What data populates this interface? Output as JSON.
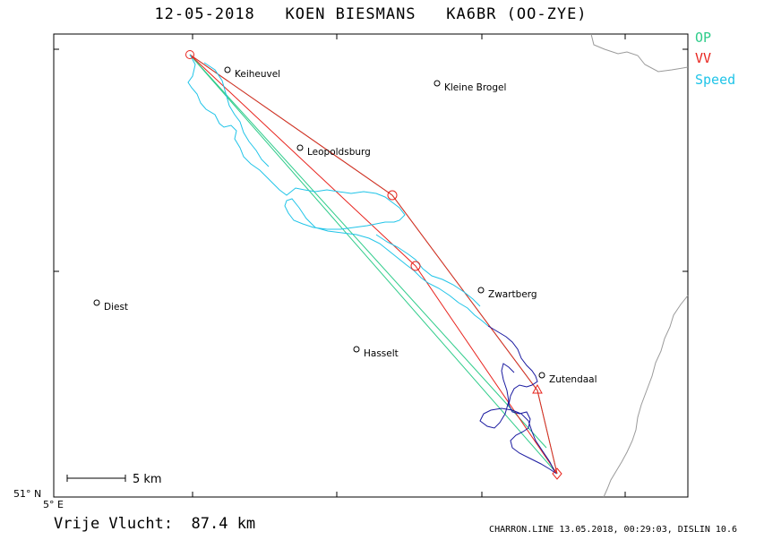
{
  "header": {
    "title": "12-05-2018   KOEN BIESMANS   KA6BR (OO-ZYE)"
  },
  "legend": {
    "items": [
      {
        "label": "OP",
        "color": "#2ecc8a"
      },
      {
        "label": "VV",
        "color": "#e8241e"
      },
      {
        "label": "Speed",
        "color": "#20c4e8"
      }
    ]
  },
  "map": {
    "lat_label": "51° N",
    "lon_label": "5° E",
    "scale_label": "5 km",
    "towns": [
      {
        "name": "Keiheuvel"
      },
      {
        "name": "Kleine Brogel"
      },
      {
        "name": "Leopoldsburg"
      },
      {
        "name": "Zwartberg"
      },
      {
        "name": "Diest"
      },
      {
        "name": "Hasselt"
      },
      {
        "name": "Zutendaal"
      }
    ],
    "colors": {
      "frame": "#000000",
      "border": "#9a9a9a",
      "op": "#2ecc8a",
      "vv": "#e8241e",
      "speed_track": "#20c4e8",
      "slow_track": "#1a1aa0"
    }
  },
  "footer": {
    "distance_text": "Vrije Vlucht:  87.4 km",
    "credit": "CHARRON.LINE 13.05.2018, 00:29:03, DISLIN 10.6"
  }
}
